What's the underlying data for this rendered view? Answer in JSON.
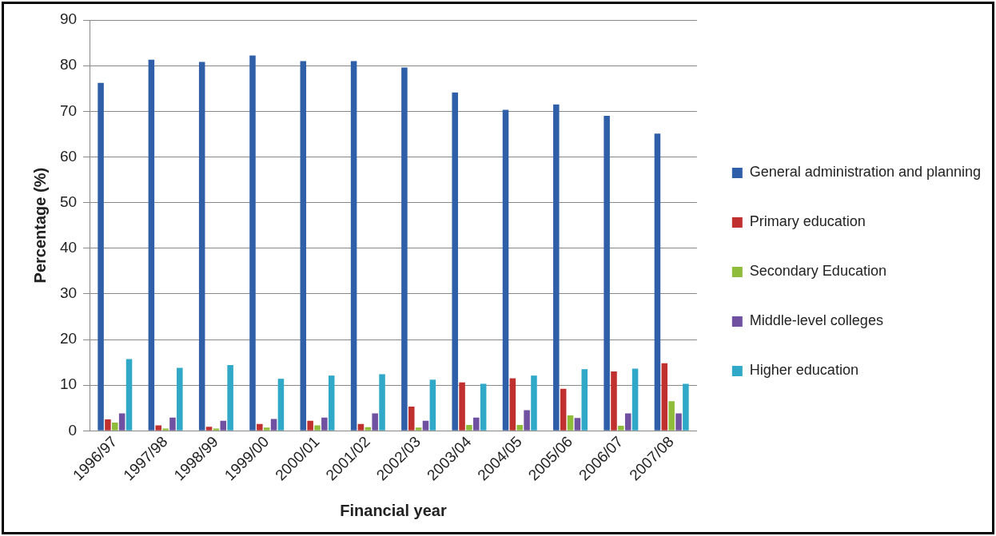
{
  "chart_data": {
    "type": "bar",
    "xlabel": "Financial year",
    "ylabel": "Percentage (%)",
    "categories": [
      "1996/97",
      "1997/98",
      "1998/99",
      "1999/00",
      "2000/01",
      "2001/02",
      "2002/03",
      "2003/04",
      "2004/05",
      "2005/06",
      "2006/07",
      "2007/08"
    ],
    "series": [
      {
        "name": "General administration and planning",
        "color": "#2f5fa8",
        "values": [
          76.2,
          81.3,
          80.8,
          82.2,
          81.0,
          81.0,
          79.6,
          74.1,
          70.3,
          71.5,
          69.0,
          65.1
        ]
      },
      {
        "name": "Primary education",
        "color": "#c0302e",
        "values": [
          2.5,
          1.2,
          0.9,
          1.5,
          2.2,
          1.5,
          5.3,
          10.6,
          11.5,
          9.2,
          13.0,
          14.8
        ]
      },
      {
        "name": "Secondary Education",
        "color": "#8fbc3a",
        "values": [
          1.8,
          0.5,
          0.5,
          0.7,
          1.2,
          0.8,
          0.7,
          1.3,
          1.3,
          3.4,
          1.1,
          6.5
        ]
      },
      {
        "name": "Middle-level colleges",
        "color": "#7050a0",
        "values": [
          3.8,
          2.9,
          2.2,
          2.6,
          2.9,
          3.8,
          2.2,
          2.9,
          4.5,
          2.8,
          3.8,
          3.8
        ]
      },
      {
        "name": "Higher education",
        "color": "#30a8c8",
        "values": [
          15.7,
          13.8,
          14.4,
          11.4,
          12.1,
          12.4,
          11.2,
          10.3,
          12.1,
          13.5,
          13.6,
          10.3
        ]
      }
    ],
    "ylim": [
      0,
      90
    ],
    "yticks": [
      0,
      10,
      20,
      30,
      40,
      50,
      60,
      70,
      80,
      90
    ],
    "grid": "y",
    "legend": "right"
  }
}
